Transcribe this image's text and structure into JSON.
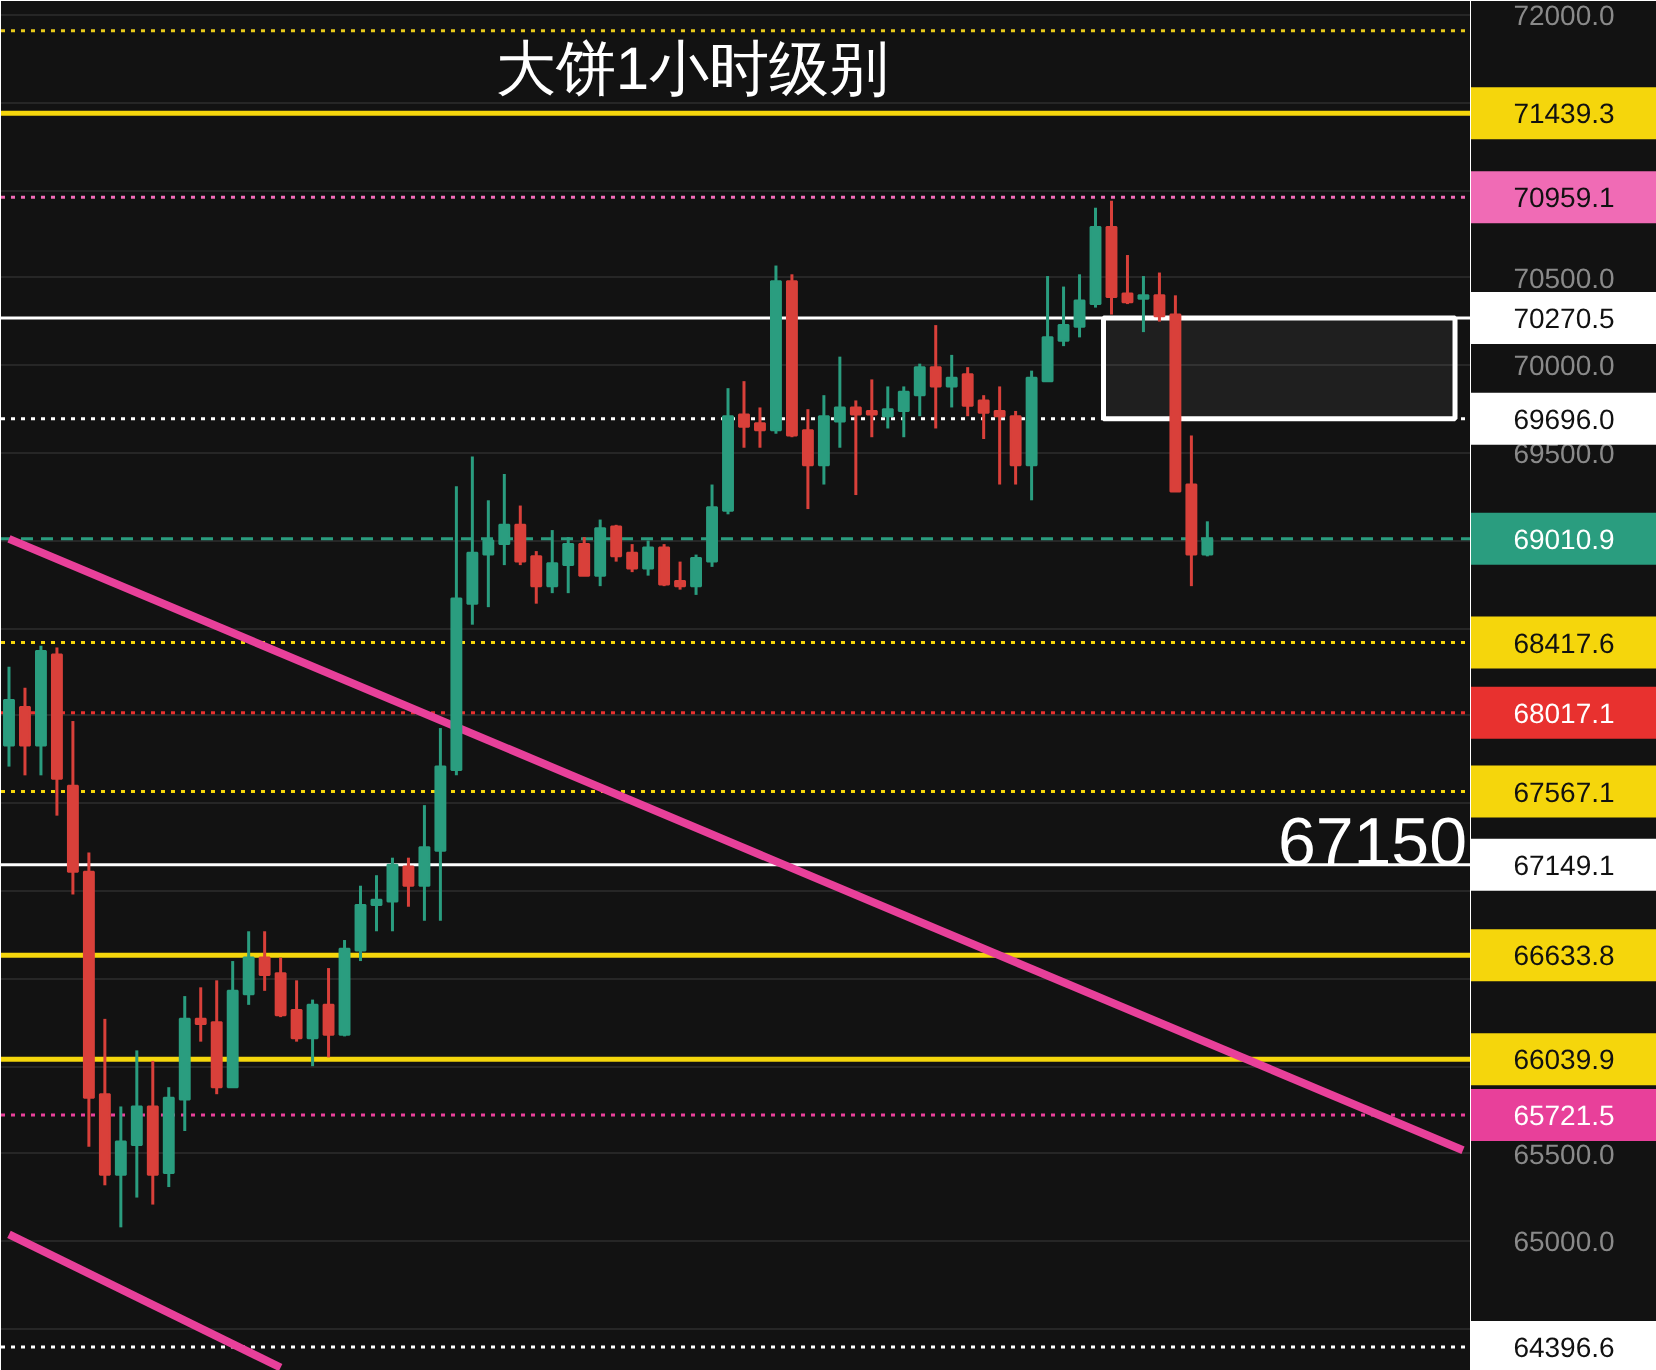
{
  "chart_data": {
    "type": "candlestick",
    "title": "大饼1小时级别",
    "categories": [
      null,
      null,
      null,
      null,
      null,
      null,
      null,
      null,
      null,
      null,
      null,
      null,
      null,
      null,
      null,
      null,
      null,
      null,
      null,
      null,
      null,
      null,
      null,
      null,
      null,
      null,
      null,
      null,
      null,
      null,
      null,
      null,
      null,
      null,
      null,
      null,
      null,
      null,
      null,
      null,
      null,
      null,
      null,
      null,
      null,
      null,
      null,
      null,
      null,
      null,
      null,
      null,
      null,
      null,
      null,
      null,
      null,
      null,
      null,
      null,
      null,
      null,
      null,
      null,
      null,
      null,
      null,
      null,
      null,
      null,
      null,
      null,
      null,
      null,
      null,
      null,
      null,
      null,
      null,
      null,
      null,
      null,
      null,
      null,
      null,
      null,
      null,
      null,
      null,
      null,
      null,
      null
    ],
    "ohlc": [
      [
        67830,
        68280,
        67710,
        68090
      ],
      [
        68050,
        68160,
        67660,
        67830
      ],
      [
        67830,
        68400,
        67660,
        68370
      ],
      [
        68350,
        68390,
        67430,
        67640
      ],
      [
        67600,
        67970,
        66980,
        67110
      ],
      [
        67110,
        67220,
        65540,
        65820
      ],
      [
        65840,
        66270,
        65320,
        65380
      ],
      [
        65380,
        65770,
        65080,
        65570
      ],
      [
        65550,
        66090,
        65250,
        65770
      ],
      [
        65770,
        66030,
        65210,
        65380
      ],
      [
        65390,
        65880,
        65310,
        65820
      ],
      [
        65810,
        66400,
        65630,
        66270
      ],
      [
        66270,
        66450,
        66140,
        66240
      ],
      [
        66250,
        66490,
        65840,
        65880
      ],
      [
        65880,
        66600,
        65880,
        66430
      ],
      [
        66410,
        66770,
        66350,
        66620
      ],
      [
        66620,
        66770,
        66430,
        66520
      ],
      [
        66530,
        66620,
        66280,
        66290
      ],
      [
        66320,
        66490,
        66140,
        66160
      ],
      [
        66160,
        66380,
        66000,
        66350
      ],
      [
        66350,
        66560,
        66050,
        66180
      ],
      [
        66180,
        66720,
        66170,
        66670
      ],
      [
        66660,
        67030,
        66600,
        66920
      ],
      [
        66920,
        67090,
        66770,
        66950
      ],
      [
        66940,
        67190,
        66770,
        67150
      ],
      [
        67140,
        67190,
        66910,
        67030
      ],
      [
        67030,
        67490,
        66830,
        67250
      ],
      [
        67230,
        67930,
        66830,
        67710
      ],
      [
        67690,
        69310,
        67660,
        68670
      ],
      [
        68640,
        69480,
        68520,
        68930
      ],
      [
        68920,
        69230,
        68620,
        69000
      ],
      [
        68980,
        69380,
        68860,
        69090
      ],
      [
        69090,
        69200,
        68860,
        68880
      ],
      [
        68910,
        68940,
        68640,
        68740
      ],
      [
        68740,
        69060,
        68700,
        68870
      ],
      [
        68860,
        69020,
        68700,
        68980
      ],
      [
        68980,
        69020,
        68800,
        68800
      ],
      [
        68800,
        69120,
        68740,
        69070
      ],
      [
        69080,
        69090,
        68880,
        68910
      ],
      [
        68930,
        68980,
        68820,
        68840
      ],
      [
        68840,
        69000,
        68800,
        68960
      ],
      [
        68960,
        68980,
        68740,
        68750
      ],
      [
        68770,
        68880,
        68720,
        68740
      ],
      [
        68740,
        68920,
        68690,
        68900
      ],
      [
        68880,
        69320,
        68850,
        69190
      ],
      [
        69170,
        69870,
        69150,
        69710
      ],
      [
        69720,
        69910,
        69530,
        69650
      ],
      [
        69670,
        69760,
        69530,
        69630
      ],
      [
        69630,
        70570,
        69610,
        70480
      ],
      [
        70480,
        70520,
        69590,
        69600
      ],
      [
        69630,
        69750,
        69180,
        69430
      ],
      [
        69430,
        69830,
        69320,
        69710
      ],
      [
        69680,
        70050,
        69530,
        69760
      ],
      [
        69760,
        69800,
        69260,
        69720
      ],
      [
        69740,
        69920,
        69590,
        69720
      ],
      [
        69710,
        69880,
        69640,
        69750
      ],
      [
        69740,
        69880,
        69590,
        69850
      ],
      [
        69830,
        70010,
        69710,
        69990
      ],
      [
        69990,
        70230,
        69640,
        69880
      ],
      [
        69880,
        70060,
        69760,
        69930
      ],
      [
        69950,
        69990,
        69710,
        69770
      ],
      [
        69800,
        69830,
        69580,
        69730
      ],
      [
        69740,
        69880,
        69320,
        69710
      ],
      [
        69710,
        69740,
        69320,
        69430
      ],
      [
        69430,
        69970,
        69230,
        69930
      ],
      [
        69910,
        70510,
        69910,
        70160
      ],
      [
        70140,
        70450,
        70110,
        70230
      ],
      [
        70220,
        70520,
        70160,
        70370
      ],
      [
        70350,
        70900,
        70330,
        70790
      ],
      [
        70790,
        70940,
        70290,
        70390
      ],
      [
        70410,
        70630,
        70350,
        70360
      ],
      [
        70380,
        70510,
        70190,
        70400
      ],
      [
        70400,
        70530,
        70250,
        70280
      ],
      [
        70290,
        70400,
        69280,
        69280
      ],
      [
        69320,
        69600,
        68740,
        68920
      ],
      [
        68920,
        69110,
        68910,
        69010
      ],
      null,
      null,
      null,
      null,
      null,
      null,
      null,
      null,
      null,
      null,
      null,
      null,
      null,
      null,
      null,
      null
    ],
    "colors": [
      "#2a9d7f",
      "#d9403a",
      "#2a9d7f",
      "#d9403a",
      "#d9403a",
      "#d9403a",
      "#d9403a",
      "#2a9d7f",
      "#2a9d7f",
      "#d9403a",
      "#2a9d7f",
      "#2a9d7f",
      "#d9403a",
      "#d9403a",
      "#2a9d7f",
      "#2a9d7f",
      "#d9403a",
      "#d9403a",
      "#d9403a",
      "#2a9d7f",
      "#d9403a",
      "#2a9d7f",
      "#2a9d7f",
      "#2a9d7f",
      "#2a9d7f",
      "#d9403a",
      "#2a9d7f",
      "#2a9d7f",
      "#2a9d7f",
      "#2a9d7f",
      "#2a9d7f",
      "#2a9d7f",
      "#d9403a",
      "#d9403a",
      "#2a9d7f",
      "#2a9d7f",
      "#d9403a",
      "#2a9d7f",
      "#d9403a",
      "#d9403a",
      "#2a9d7f",
      "#d9403a",
      "#d9403a",
      "#2a9d7f",
      "#2a9d7f",
      "#2a9d7f",
      "#d9403a",
      "#d9403a",
      "#2a9d7f",
      "#d9403a",
      "#d9403a",
      "#2a9d7f",
      "#2a9d7f",
      "#d9403a",
      "#d9403a",
      "#2a9d7f",
      "#2a9d7f",
      "#2a9d7f",
      "#d9403a",
      "#2a9d7f",
      "#d9403a",
      "#d9403a",
      "#d9403a",
      "#d9403a",
      "#2a9d7f",
      "#2a9d7f",
      "#2a9d7f",
      "#2a9d7f",
      "#2a9d7f",
      "#d9403a",
      "#d9403a",
      "#2a9d7f",
      "#d9403a",
      "#d9403a",
      "#d9403a",
      "#2a9d7f",
      null,
      null,
      null,
      null,
      null,
      null,
      null,
      null,
      null,
      null,
      null,
      null,
      null,
      null,
      null,
      null
    ],
    "series": [
      {
        "type": "line",
        "color": "#e8409a",
        "values": [
          69010,
          null,
          null,
          null,
          null,
          null,
          null,
          null,
          null,
          null,
          null,
          null,
          null,
          null,
          null,
          null,
          null,
          null,
          null,
          null,
          null,
          null,
          null,
          null,
          null,
          null,
          null,
          null,
          null,
          null,
          null,
          null,
          null,
          null,
          null,
          null,
          null,
          null,
          null,
          null,
          null,
          null,
          null,
          null,
          null,
          null,
          null,
          null,
          null,
          null,
          null,
          null,
          null,
          null,
          null,
          null,
          null,
          null,
          null,
          null,
          null,
          null,
          null,
          null,
          null,
          null,
          null,
          null,
          null,
          null,
          null,
          null,
          null,
          null,
          null,
          null,
          null,
          null,
          null,
          null,
          null,
          null,
          null,
          null,
          null,
          null,
          null,
          null,
          null,
          null,
          null,
          65520
        ]
      },
      {
        "type": "line",
        "color": "#e8409a",
        "values": [
          65040,
          null,
          null,
          null,
          null,
          null,
          null,
          null,
          null,
          null,
          null,
          null,
          null,
          null,
          null,
          null,
          null,
          64280,
          null,
          null,
          null,
          null,
          null,
          null,
          null,
          null,
          null,
          null,
          null,
          null,
          null,
          null,
          null,
          null,
          null,
          null,
          null,
          null,
          null,
          null,
          null,
          null,
          null,
          null,
          null,
          null,
          null,
          null,
          null,
          null,
          null,
          null,
          null,
          null,
          null,
          null,
          null,
          null,
          null,
          null,
          null,
          null,
          null,
          null,
          null,
          null,
          null,
          null,
          null,
          null,
          null,
          null,
          null,
          null,
          null,
          null,
          null,
          null,
          null,
          null,
          null,
          null,
          null,
          null,
          null,
          null,
          null,
          null,
          null,
          null,
          null,
          null
        ]
      }
    ],
    "ylim": [
      64260,
      72080
    ],
    "yticks": [
      {
        "value": 72000,
        "label": "72000.0"
      },
      {
        "value": 71500,
        "label": null
      },
      {
        "value": 71000,
        "label": null
      },
      {
        "value": 70500,
        "label": "70500.0"
      },
      {
        "value": 70000,
        "label": "70000.0"
      },
      {
        "value": 69500,
        "label": "69500.0"
      },
      {
        "value": 69000,
        "label": null
      },
      {
        "value": 68500,
        "label": null
      },
      {
        "value": 68000,
        "label": null
      },
      {
        "value": 67500,
        "label": null
      },
      {
        "value": 67000,
        "label": null
      },
      {
        "value": 66500,
        "label": null
      },
      {
        "value": 66000,
        "label": null
      },
      {
        "value": 65500,
        "label": "65500.0"
      },
      {
        "value": 65000,
        "label": "65000.0"
      },
      {
        "value": 64500,
        "label": null
      }
    ],
    "ref_lines": [
      {
        "axis": "y",
        "value": 71910,
        "color": "#e8c91c",
        "line_style": "dotted"
      },
      {
        "axis": "y",
        "value": 71439.3,
        "label": "71439.3",
        "color": "#f5d60c",
        "line_style": "solid"
      },
      {
        "axis": "y",
        "value": 70959.1,
        "label": "70959.1",
        "color": "#f06bb5",
        "line_style": "dotted"
      },
      {
        "axis": "y",
        "value": 70270.5,
        "label": "70270.5",
        "color": "#ffffff",
        "line_style": "solid"
      },
      {
        "axis": "y",
        "value": 69696.0,
        "label": "69696.0",
        "color": "#ffffff",
        "line_style": "dotted"
      },
      {
        "axis": "y",
        "value": 69010.9,
        "label": "69010.9",
        "color": "#2a9d7f",
        "line_style": "dashed"
      },
      {
        "axis": "y",
        "value": 68417.6,
        "label": "68417.6",
        "color": "#f5d60c",
        "line_style": "dotted"
      },
      {
        "axis": "y",
        "value": 68017.1,
        "label": "68017.1",
        "color": "#e8312f",
        "line_style": "dotted"
      },
      {
        "axis": "y",
        "value": 67567.1,
        "label": "67567.1",
        "color": "#f5d60c",
        "line_style": "dotted"
      },
      {
        "axis": "y",
        "value": 67149.1,
        "label": "67149.1",
        "color": "#ffffff",
        "line_style": "solid"
      },
      {
        "axis": "y",
        "value": 66633.8,
        "label": "66633.8",
        "color": "#f5d60c",
        "line_style": "solid"
      },
      {
        "axis": "y",
        "value": 66039.9,
        "label": "66039.9",
        "color": "#f5d60c",
        "line_style": "solid"
      },
      {
        "axis": "y",
        "value": 65721.5,
        "label": "65721.5",
        "color": "#e8409a",
        "line_style": "dotted"
      },
      {
        "axis": "y",
        "value": 64396.6,
        "label": "64396.6",
        "color": "#ffffff",
        "line_style": "dotted"
      }
    ],
    "bands": [
      {
        "axis": "y",
        "from": 69696.0,
        "to": 70270.5,
        "color": "#ffffff"
      }
    ],
    "annotations": [
      {
        "text": "67150",
        "y": 67150
      }
    ],
    "grid": "y"
  }
}
